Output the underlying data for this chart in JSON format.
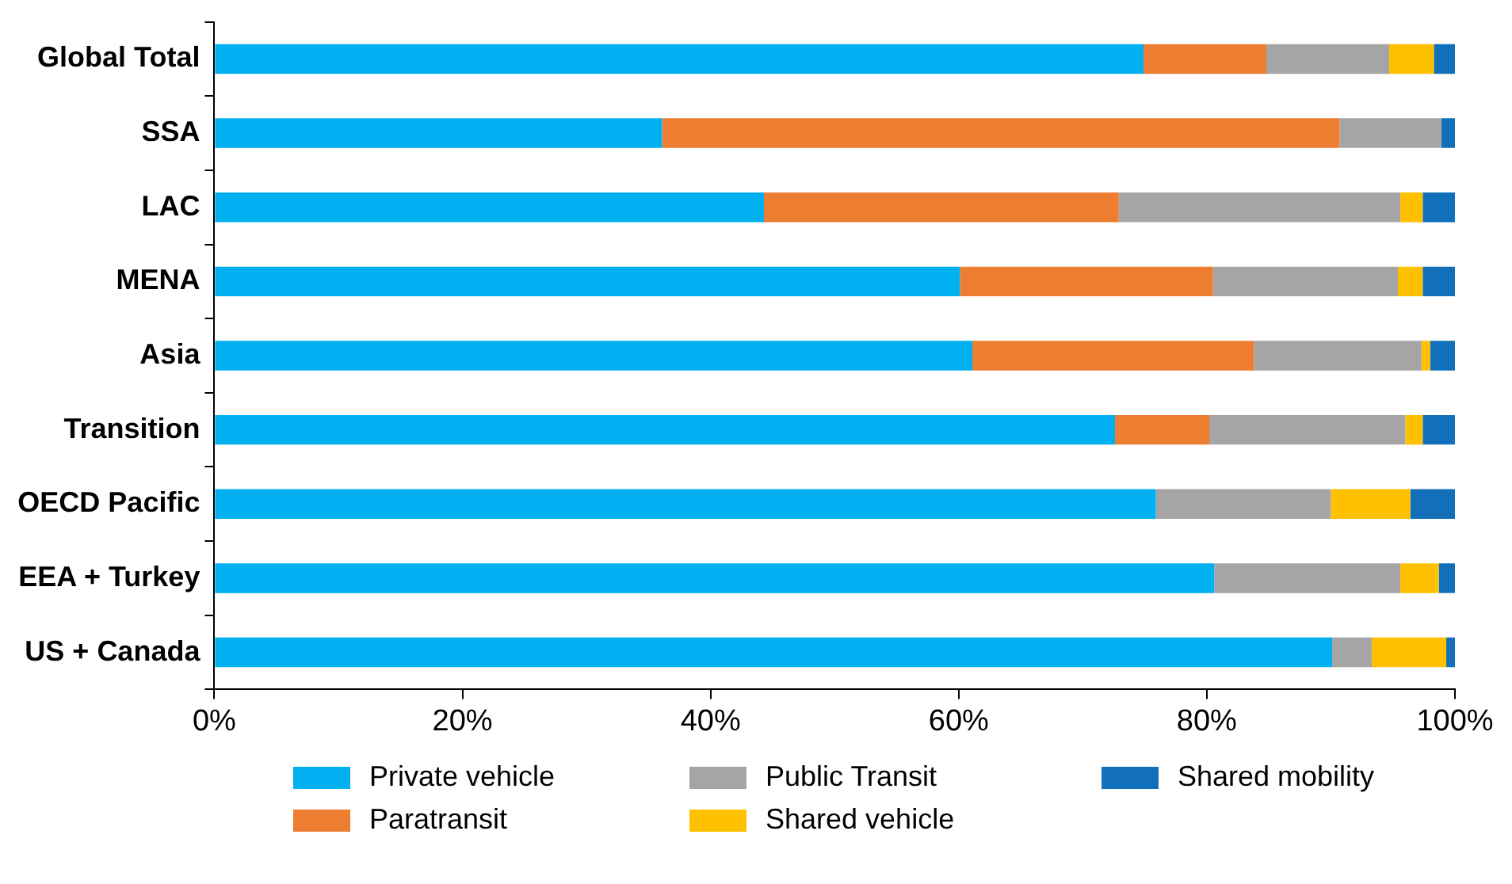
{
  "chart_data": {
    "type": "bar",
    "orientation": "horizontal",
    "stacked": true,
    "categories": [
      "Global Total",
      "SSA",
      "LAC",
      "MENA",
      "Asia",
      "Transition",
      "OECD Pacific",
      "EEA + Turkey",
      "US + Canada"
    ],
    "series": [
      {
        "name": "Private vehicle",
        "color": "#00b0f0",
        "values": [
          74.9,
          36.1,
          44.3,
          60.1,
          61.1,
          72.6,
          75.9,
          80.6,
          90.1
        ]
      },
      {
        "name": "Paratransit",
        "color": "#ed7d31",
        "values": [
          9.9,
          54.6,
          28.6,
          20.4,
          22.7,
          7.6,
          0,
          0,
          0
        ]
      },
      {
        "name": "Public Transit",
        "color": "#a5a5a5",
        "values": [
          9.9,
          8.2,
          22.7,
          14.9,
          13.5,
          15.8,
          14.1,
          15.0,
          3.2
        ]
      },
      {
        "name": "Shared vehicle",
        "color": "#ffc000",
        "values": [
          3.6,
          0,
          1.8,
          2.0,
          0.7,
          1.4,
          6.4,
          3.1,
          6.0
        ]
      },
      {
        "name": "Shared mobility",
        "color": "#1170b9",
        "values": [
          1.7,
          1.1,
          2.6,
          2.6,
          2.0,
          2.6,
          3.6,
          1.3,
          0.7
        ]
      }
    ],
    "xlim": [
      0,
      100
    ],
    "xticks": [
      {
        "value": 0,
        "label": "0%"
      },
      {
        "value": 20,
        "label": "20%"
      },
      {
        "value": 40,
        "label": "40%"
      },
      {
        "value": 60,
        "label": "60%"
      },
      {
        "value": 80,
        "label": "80%"
      },
      {
        "value": 100,
        "label": "100%"
      }
    ],
    "grid": false,
    "legend": "bottom"
  }
}
